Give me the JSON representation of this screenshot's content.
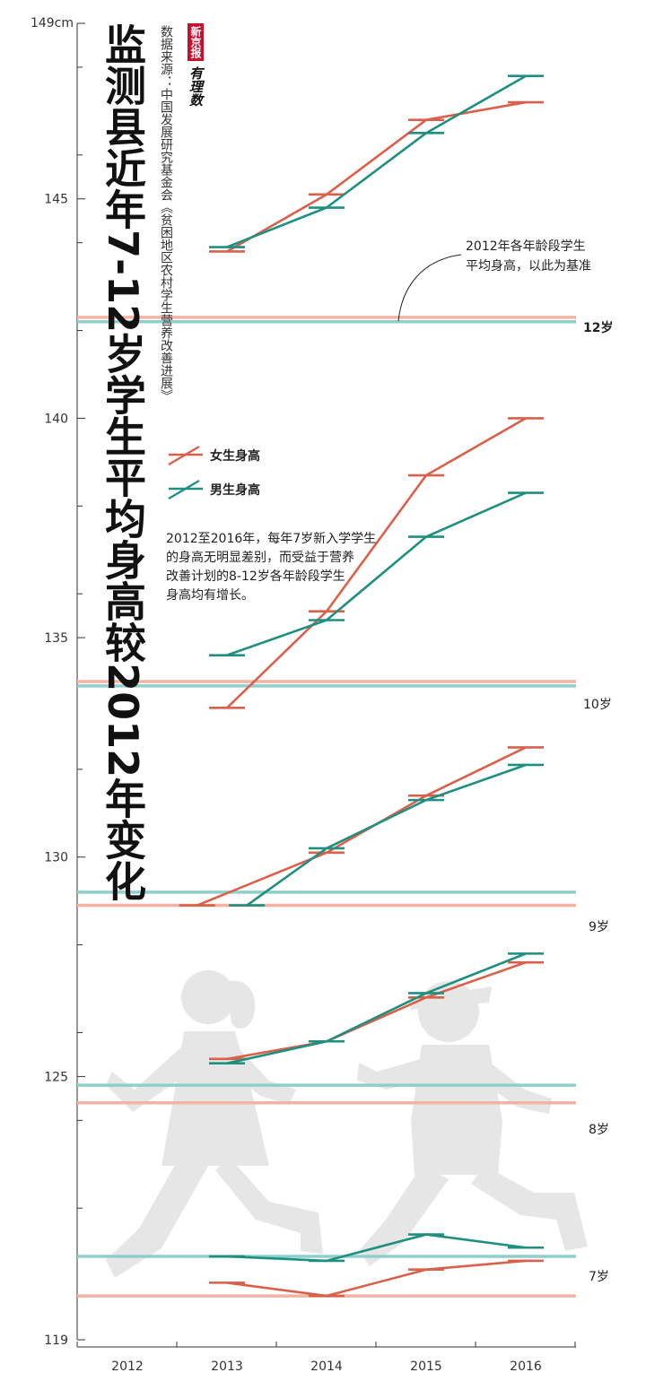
{
  "title": "监测县近年7-12岁学生平均身高较2012年变化",
  "source": "数据来源：中国发展研究基金会《贫困地区农村学生营养改善进展》",
  "brand": {
    "name": "新京报",
    "sub": "有理数"
  },
  "legend": {
    "girls": "女生身高",
    "boys": "男生身高"
  },
  "note": {
    "line1": "2012至2016年，每年7岁新入学学生",
    "line2": "的身高无明显差别，而受益于营养",
    "line3": "改善计划的8-12岁各年龄段学生",
    "line4": "身高均有增长。"
  },
  "ref_note": {
    "line1": "2012年各年龄段学生",
    "line2": "平均身高，以此为基准"
  },
  "age_labels": {
    "a12": "12岁",
    "a10": "10岁",
    "a9": "9岁",
    "a8": "8岁",
    "a7": "7岁"
  },
  "colors": {
    "girls": "#d9604a",
    "boys": "#1f8f7f",
    "girls_base": "#f2b2a4",
    "boys_base": "#8fcfcb",
    "silhouette": "#e6e6e6"
  },
  "chart_data": {
    "type": "line",
    "title": "监测县近年7-12岁学生平均身高较2012年变化",
    "x": [
      2012,
      2013,
      2014,
      2015,
      2016
    ],
    "x_tick_labels": [
      "2012",
      "2013",
      "2014",
      "2015",
      "2016"
    ],
    "ylim": [
      119,
      149
    ],
    "y_ticks": [
      119,
      125,
      130,
      135,
      140,
      145
    ],
    "y_tick_labels": [
      "119",
      "125",
      "130",
      "135",
      "140",
      "145"
    ],
    "y_top_label": "149cm",
    "groups": [
      {
        "age": "12岁",
        "baseline": {
          "girls": 142.3,
          "boys": 142.2
        },
        "girls": {
          "x": [
            2013,
            2014,
            2015,
            2016
          ],
          "y": [
            143.8,
            145.1,
            146.8,
            147.2
          ]
        },
        "boys": {
          "x": [
            2013,
            2014,
            2015,
            2016
          ],
          "y": [
            143.9,
            144.8,
            146.5,
            147.8
          ]
        }
      },
      {
        "age": "10岁",
        "baseline": {
          "girls": 134.0,
          "boys": 133.9
        },
        "girls": {
          "x": [
            2013,
            2014,
            2015,
            2016
          ],
          "y": [
            133.4,
            135.6,
            138.7,
            140.0
          ]
        },
        "boys": {
          "x": [
            2013,
            2014,
            2015,
            2016
          ],
          "y": [
            134.6,
            135.4,
            137.3,
            138.3
          ]
        }
      },
      {
        "age": "9岁",
        "baseline": {
          "girls": 128.9,
          "boys": 129.2
        },
        "girls": {
          "x": [
            2012.7,
            2014,
            2015,
            2016
          ],
          "y": [
            128.9,
            130.1,
            131.4,
            132.5
          ]
        },
        "boys": {
          "x": [
            2013.2,
            2014,
            2015,
            2016
          ],
          "y": [
            128.9,
            130.2,
            131.3,
            132.1
          ]
        }
      },
      {
        "age": "8岁",
        "baseline": {
          "girls": 124.4,
          "boys": 124.8
        },
        "girls": {
          "x": [
            2013,
            2014,
            2015,
            2016
          ],
          "y": [
            125.4,
            125.8,
            126.8,
            127.6
          ]
        },
        "boys": {
          "x": [
            2013,
            2014,
            2015,
            2016
          ],
          "y": [
            125.3,
            125.8,
            126.9,
            127.8
          ]
        }
      },
      {
        "age": "7岁",
        "baseline": {
          "girls": 120.0,
          "boys": 120.9
        },
        "girls": {
          "x": [
            2013,
            2014,
            2015,
            2016
          ],
          "y": [
            120.3,
            120.0,
            120.6,
            120.8
          ]
        },
        "boys": {
          "x": [
            2013,
            2014,
            2015,
            2016
          ],
          "y": [
            120.9,
            120.8,
            121.4,
            121.1
          ]
        }
      }
    ]
  }
}
